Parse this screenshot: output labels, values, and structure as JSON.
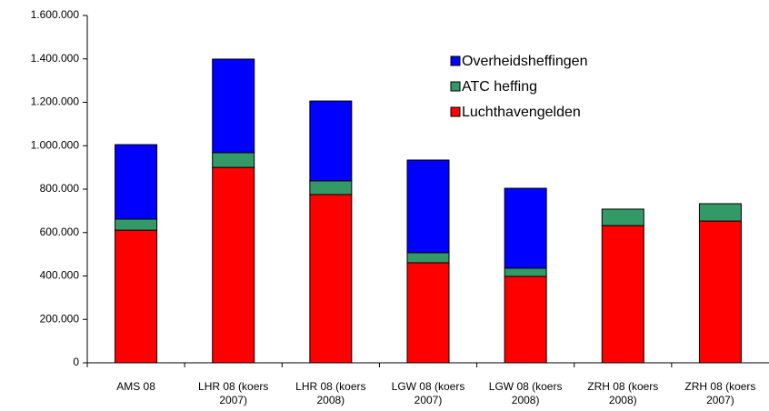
{
  "chart_data": {
    "type": "stacked_bar",
    "categories": [
      "AMS 08",
      "LHR 08 (koers 2007)",
      "LHR 08 (koers 2008)",
      "LGW 08 (koers 2007)",
      "LGW 08 (koers 2008)",
      "ZRH 08 (koers 2008)",
      "ZRH 08 (koers 2007)"
    ],
    "series": [
      {
        "name": "Luchthavengelden",
        "color": "#ff0000",
        "values": [
          611000,
          900000,
          775000,
          461000,
          398000,
          632000,
          653000
        ]
      },
      {
        "name": "ATC heffing",
        "color": "#339966",
        "values": [
          51000,
          68000,
          63000,
          46000,
          38000,
          76000,
          80000
        ]
      },
      {
        "name": "Overheidsheffingen",
        "color": "#0000ff",
        "values": [
          343000,
          431000,
          368000,
          427000,
          368000,
          0,
          0
        ]
      }
    ],
    "ylim": [
      0,
      1600000
    ],
    "yticks": [
      0,
      {
        "value": 200000,
        "label": "200.000"
      },
      {
        "value": 400000,
        "label": "400.000"
      },
      {
        "value": 600000,
        "label": "600.000"
      },
      {
        "value": 800000,
        "label": "800.000"
      },
      {
        "value": 1000000,
        "label": "1.000.000"
      },
      {
        "value": 1200000,
        "label": "1.200.000"
      },
      {
        "value": 1400000,
        "label": "1.400.000"
      },
      {
        "value": 1600000,
        "label": "1.600.000"
      }
    ],
    "grid": false,
    "legend": "upper-right"
  }
}
